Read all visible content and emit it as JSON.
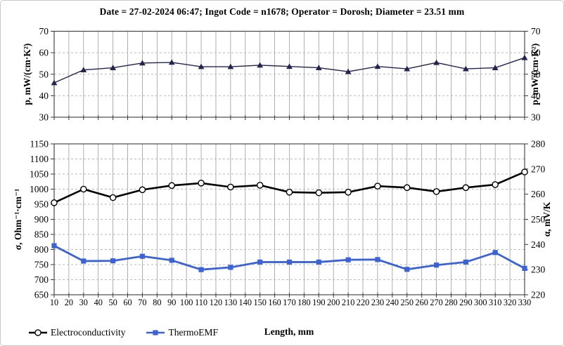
{
  "title": "Date = 27-02-2024 06:47; Ingot Code = n1678; Operator = Dorosh; Diameter = 23.51 mm",
  "chart_data": [
    {
      "type": "line",
      "panel": "top",
      "x": [
        10,
        30,
        50,
        70,
        90,
        110,
        130,
        150,
        170,
        190,
        210,
        230,
        250,
        270,
        290,
        310,
        330
      ],
      "xlim": [
        10,
        330
      ],
      "xtick_step": 10,
      "ylim": [
        30,
        70
      ],
      "ytick_step": 10,
      "ylabel_left": "p, mW/(cm·K²)",
      "ylabel_right": "p, mW/(cm·K²)",
      "grid": true,
      "show_xticklabels": false,
      "series": [
        {
          "name": "p",
          "axis": "left",
          "marker": "triangle",
          "color": "#23234f",
          "width": 1.4,
          "values": [
            46,
            52,
            53,
            55.2,
            55.5,
            53.5,
            53.5,
            54.2,
            53.6,
            53,
            51.2,
            53.6,
            52.5,
            55.4,
            52.5,
            53,
            57.7
          ]
        }
      ]
    },
    {
      "type": "line",
      "panel": "bottom",
      "x": [
        10,
        30,
        50,
        70,
        90,
        110,
        130,
        150,
        170,
        190,
        210,
        230,
        250,
        270,
        290,
        310,
        330
      ],
      "xlim": [
        10,
        330
      ],
      "xtick_step": 10,
      "ylim": [
        650,
        1150
      ],
      "ytick_step": 50,
      "ylim_right": [
        220,
        280
      ],
      "ytick_right": 10,
      "ylabel_left": "σ, Ohm⁻¹·cm⁻¹",
      "ylabel_right": "α, mV/K",
      "xlabel": "Length, mm",
      "grid": true,
      "show_xticklabels": true,
      "legend_position": "bottom-left",
      "series": [
        {
          "name": "Electroconductivity",
          "axis": "left",
          "marker": "circle-open",
          "color": "#000000",
          "width": 2.6,
          "values": [
            955,
            1000,
            972,
            998,
            1012,
            1020,
            1007,
            1013,
            990,
            988,
            990,
            1010,
            1005,
            992,
            1005,
            1015,
            1057
          ]
        },
        {
          "name": "ThermoEMF",
          "axis": "right",
          "marker": "square",
          "color": "#3a63d9",
          "width": 2.8,
          "values": [
            239.5,
            233.4,
            233.5,
            235.3,
            233.7,
            230,
            230.9,
            233,
            233,
            233,
            233.9,
            234,
            230.1,
            231.8,
            233,
            236.8,
            230.5
          ]
        }
      ]
    }
  ],
  "style_colors": {
    "vertical_grid": "#9c9c9c",
    "horizontal_grid": "#b9b9b9",
    "axis_border": "#3a3a3a",
    "thermoemf_blue": "#3a63d9",
    "p_series_dark": "#23234f"
  }
}
